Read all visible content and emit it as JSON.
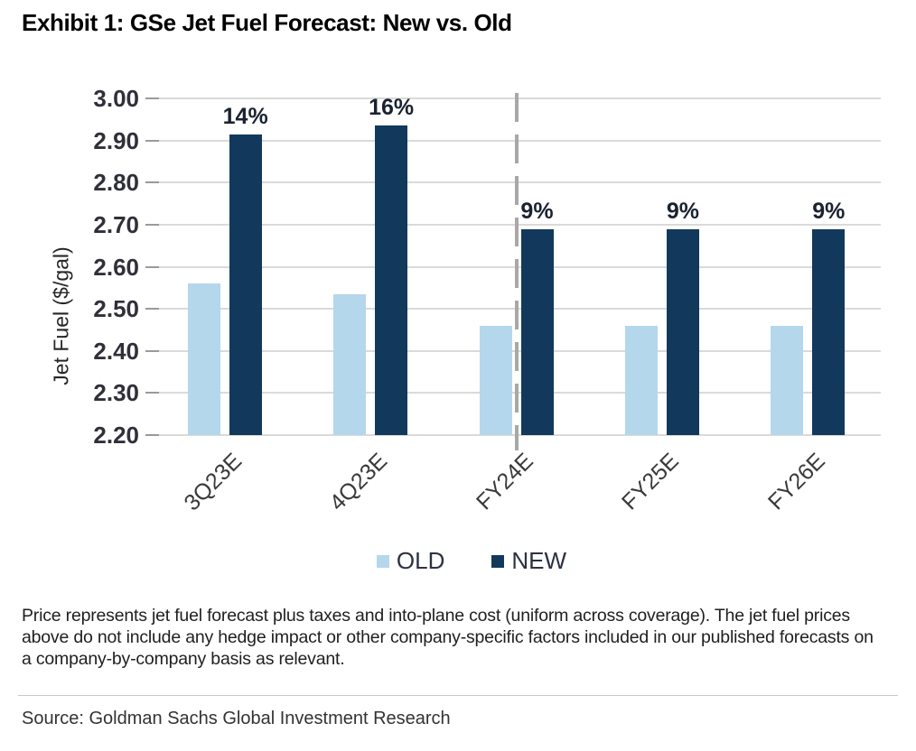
{
  "title": "Exhibit 1: GSe Jet Fuel Forecast: New vs. Old",
  "chart_data": {
    "type": "bar",
    "categories": [
      "3Q23E",
      "4Q23E",
      "FY24E",
      "FY25E",
      "FY26E"
    ],
    "series": [
      {
        "name": "OLD",
        "color": "#b5d7ec",
        "values": [
          2.56,
          2.535,
          2.46,
          2.46,
          2.46
        ]
      },
      {
        "name": "NEW",
        "color": "#12395c",
        "values": [
          2.915,
          2.935,
          2.69,
          2.69,
          2.69
        ]
      }
    ],
    "bar_labels": [
      "14%",
      "16%",
      "9%",
      "9%",
      "9%"
    ],
    "title": "Exhibit 1: GSe Jet Fuel Forecast: New vs. Old",
    "xlabel": "",
    "ylabel": "Jet Fuel ($/gal)",
    "ylim": [
      2.2,
      3.0
    ],
    "yticks": [
      "3.00",
      "2.90",
      "2.80",
      "2.70",
      "2.60",
      "2.50",
      "2.40",
      "2.30",
      "2.20"
    ],
    "grid": "horizontal",
    "legend_position": "bottom",
    "divider": {
      "style": "dashed",
      "color": "#a8a8a8",
      "at_category": "FY24E"
    },
    "gridline_color": "#dadada"
  },
  "footnote": "Price represents jet fuel forecast plus taxes and into-plane cost (uniform across coverage). The jet fuel prices above do not include any hedge impact or other company-specific factors included in our published forecasts on a company-by-company basis as relevant.",
  "source": "Source: Goldman Sachs Global Investment Research"
}
